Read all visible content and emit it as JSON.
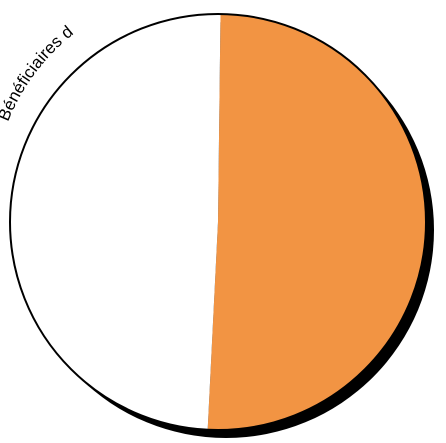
{
  "chart_data": {
    "type": "pie",
    "title": "Bénéficiaires d",
    "slices": [
      {
        "label": "",
        "value": 50.6,
        "color": "#f29443"
      },
      {
        "label": "",
        "value": 49.4,
        "color": "#ffffff"
      }
    ],
    "colors": {
      "outline": "#000000",
      "shadow": "#000000"
    }
  }
}
